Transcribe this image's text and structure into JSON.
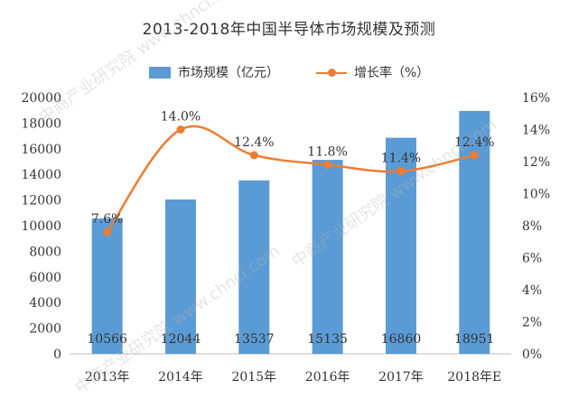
{
  "chart_data": {
    "type": "bar",
    "title": "2013-2018年中国半导体市场规模及预测",
    "categories": [
      "2013年",
      "2014年",
      "2015年",
      "2016年",
      "2017年",
      "2018年E"
    ],
    "series": [
      {
        "name": "市场规模（亿元）",
        "type": "bar",
        "axis": "left",
        "color": "#5b9bd5",
        "values": [
          10566,
          12044,
          13537,
          15135,
          16860,
          18951
        ]
      },
      {
        "name": "增长率（%）",
        "type": "line",
        "axis": "right",
        "color": "#ed7d31",
        "values": [
          7.6,
          14.0,
          12.4,
          11.8,
          11.4,
          12.4
        ],
        "labels": [
          "7.6%",
          "14.0%",
          "12.4%",
          "11.8%",
          "11.4%",
          "12.4%"
        ]
      }
    ],
    "y_left": {
      "min": 0,
      "max": 20000,
      "step": 2000,
      "ticks": [
        "0",
        "2000",
        "4000",
        "6000",
        "8000",
        "10000",
        "12000",
        "14000",
        "16000",
        "18000",
        "20000"
      ]
    },
    "y_right": {
      "min": 0,
      "max": 16,
      "step": 2,
      "ticks": [
        "0%",
        "2%",
        "4%",
        "6%",
        "8%",
        "10%",
        "12%",
        "14%",
        "16%"
      ]
    },
    "bar_labels": [
      "10566",
      "12044",
      "13537",
      "15135",
      "16860",
      "18951"
    ],
    "legend_position": "top",
    "grid": false
  }
}
